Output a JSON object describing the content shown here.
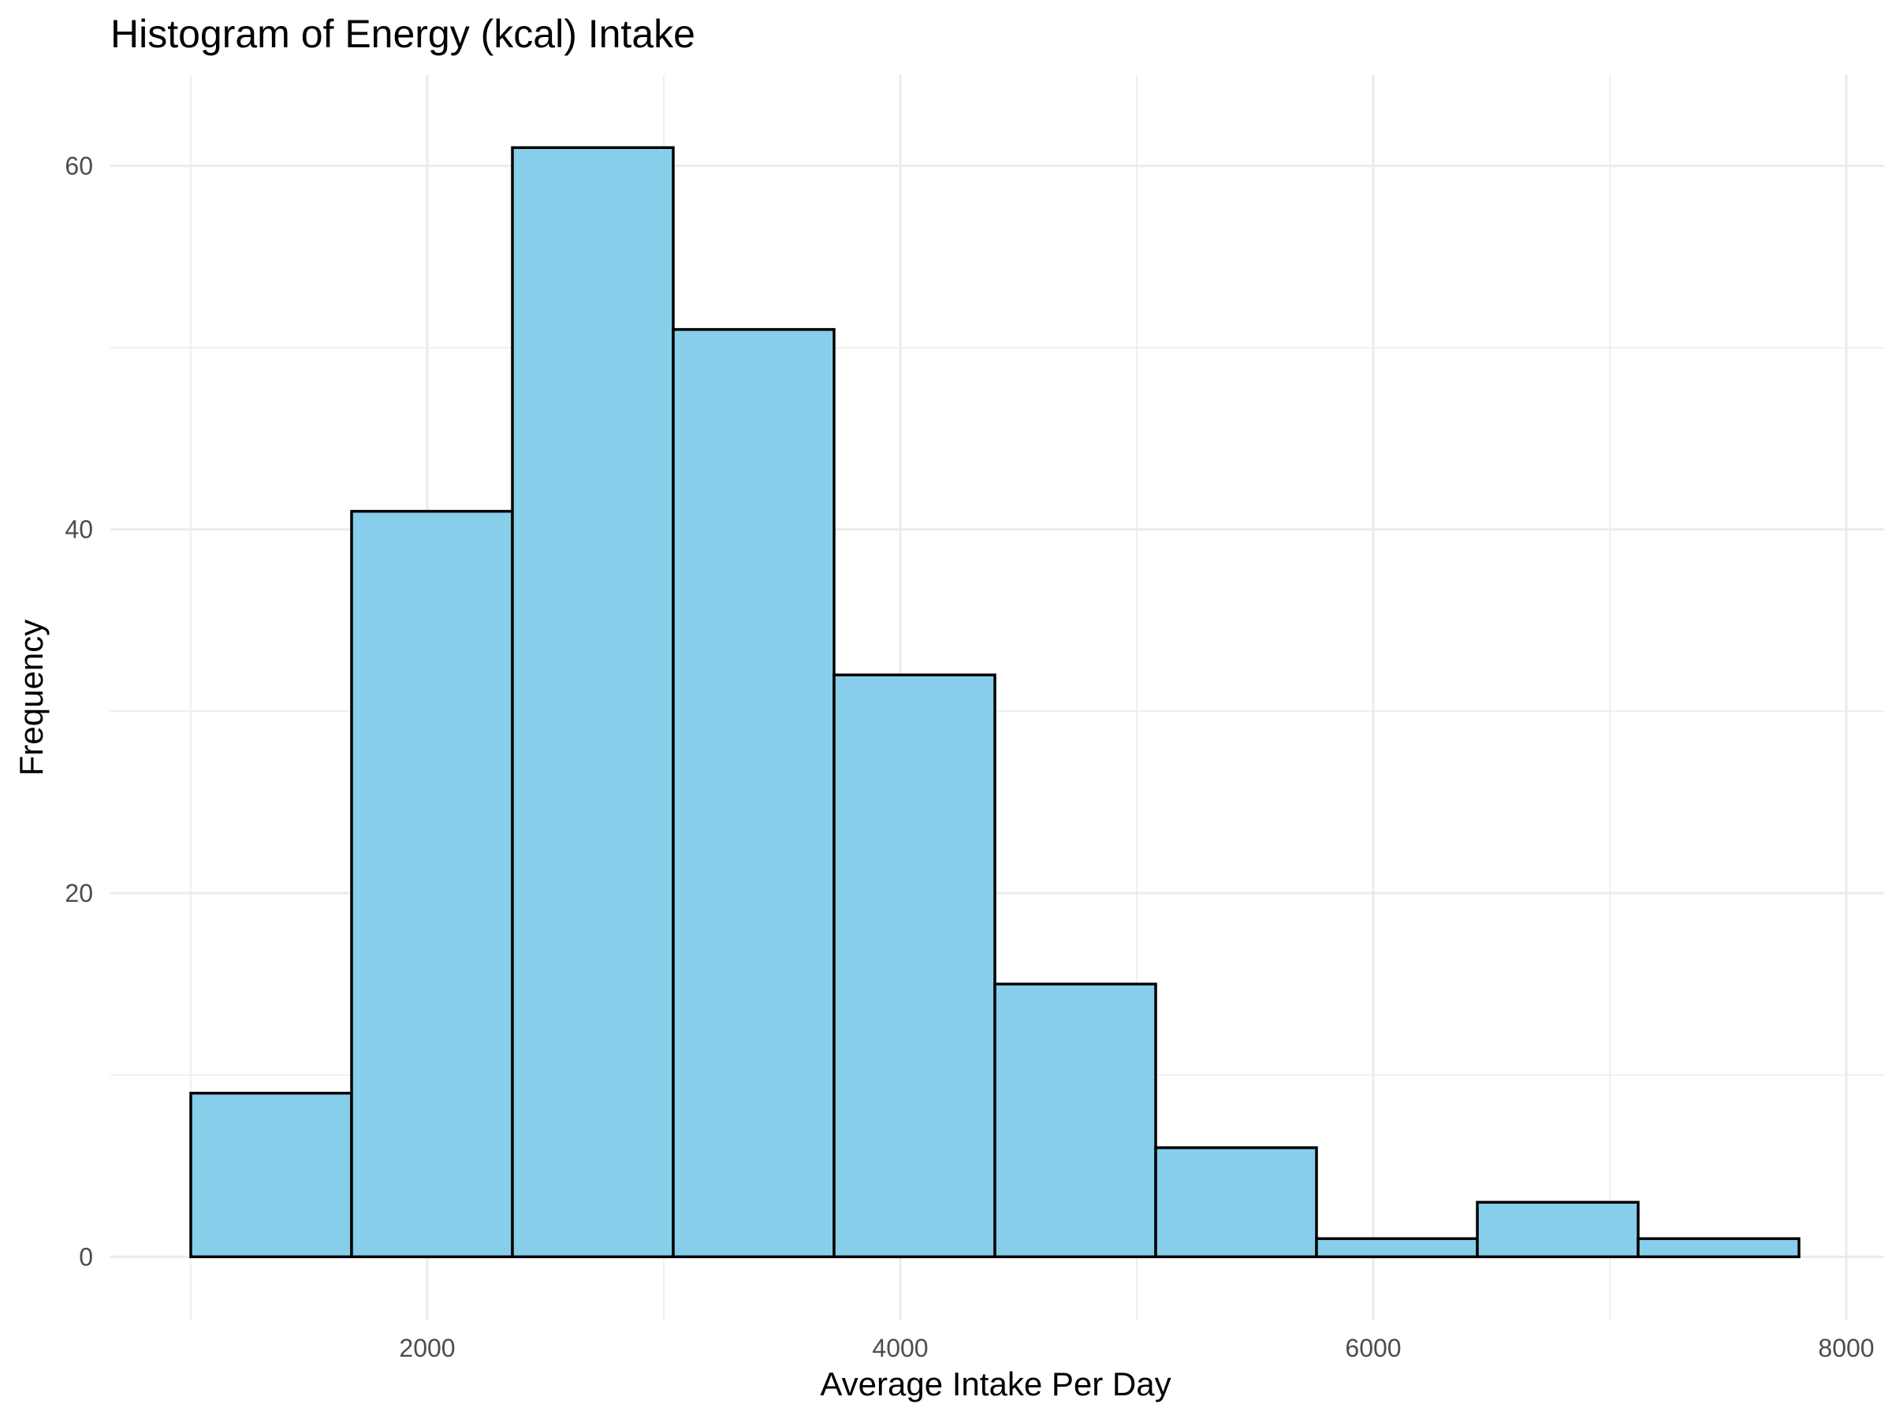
{
  "chart_data": {
    "type": "bar",
    "title": "Histogram of Energy (kcal) Intake",
    "xlabel": "Average Intake Per Day",
    "ylabel": "Frequency",
    "bins": [
      {
        "x0": 1000,
        "x1": 1680,
        "count": 9
      },
      {
        "x0": 1680,
        "x1": 2360,
        "count": 41
      },
      {
        "x0": 2360,
        "x1": 3040,
        "count": 61
      },
      {
        "x0": 3040,
        "x1": 3720,
        "count": 51
      },
      {
        "x0": 3720,
        "x1": 4400,
        "count": 32
      },
      {
        "x0": 4400,
        "x1": 5080,
        "count": 15
      },
      {
        "x0": 5080,
        "x1": 5760,
        "count": 6
      },
      {
        "x0": 5760,
        "x1": 6440,
        "count": 1
      },
      {
        "x0": 6440,
        "x1": 7120,
        "count": 3
      },
      {
        "x0": 7120,
        "x1": 7800,
        "count": 1
      }
    ],
    "xlim": [
      660,
      8160
    ],
    "ylim": [
      -3.5,
      65
    ],
    "x_ticks": [
      2000,
      4000,
      6000,
      8000
    ],
    "x_tick_labels": [
      "2000",
      "4000",
      "6000",
      "8000"
    ],
    "y_ticks": [
      0,
      20,
      40,
      60
    ],
    "y_tick_labels": [
      "0",
      "20",
      "40",
      "60"
    ],
    "grid": true,
    "colors": {
      "bar_fill": "#87CEEB",
      "bar_stroke": "#000000",
      "grid": "#ebebeb"
    }
  }
}
